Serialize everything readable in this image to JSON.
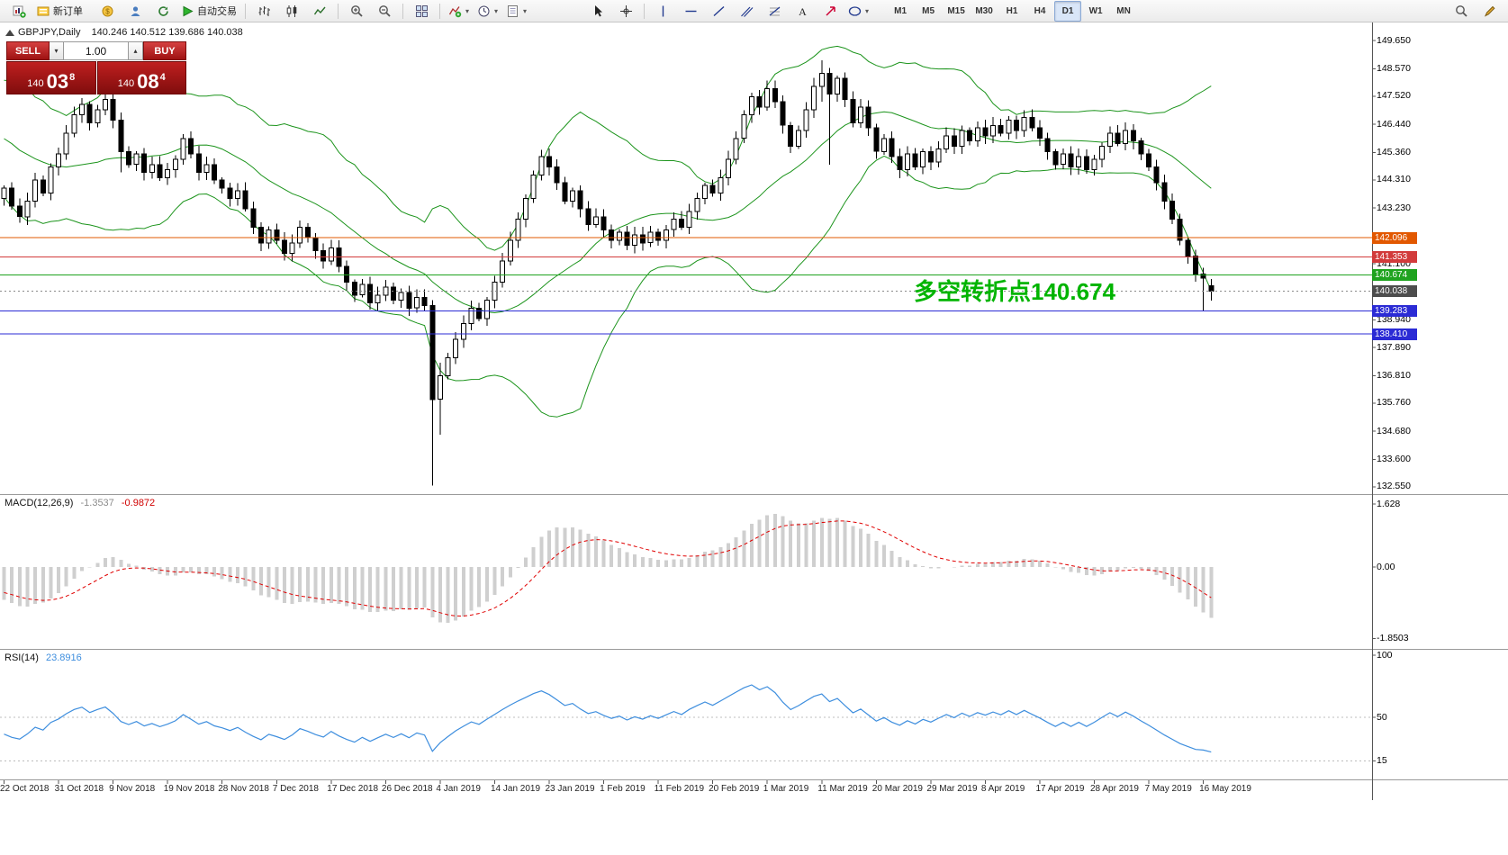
{
  "app": {
    "name": "MetaTrader"
  },
  "toolbar": {
    "items": [
      {
        "name": "new-chart-button",
        "icon": "new-chart"
      },
      {
        "name": "new-order-button",
        "icon": "new-order",
        "text": "新订单"
      },
      {
        "type": "space",
        "w": 6
      },
      {
        "name": "market-watch-button",
        "icon": "coin"
      },
      {
        "name": "navigator-button",
        "icon": "profile"
      },
      {
        "name": "refresh-button",
        "icon": "refresh"
      },
      {
        "name": "autotrading-button",
        "icon": "autotrade",
        "text": "自动交易"
      },
      {
        "type": "sep"
      },
      {
        "name": "bar-chart-button",
        "icon": "bar-chart"
      },
      {
        "name": "candlestick-chart-button",
        "icon": "candles"
      },
      {
        "name": "line-chart-button",
        "icon": "line-chart"
      },
      {
        "type": "sep"
      },
      {
        "name": "zoom-in-button",
        "icon": "zoom-in"
      },
      {
        "name": "zoom-out-button",
        "icon": "zoom-out"
      },
      {
        "type": "sep"
      },
      {
        "name": "tile-windows-button",
        "icon": "tile"
      },
      {
        "type": "sep"
      },
      {
        "name": "indicators-button",
        "icon": "indicators",
        "caret": true
      },
      {
        "name": "periods-button",
        "icon": "periods",
        "caret": true
      },
      {
        "name": "templates-button",
        "icon": "templates",
        "caret": true
      },
      {
        "type": "space",
        "w": 58
      },
      {
        "name": "cursor-button",
        "icon": "cursor"
      },
      {
        "name": "crosshair-button",
        "icon": "crosshair"
      },
      {
        "type": "sep"
      },
      {
        "name": "vertical-line-button",
        "icon": "vline"
      },
      {
        "name": "horizontal-line-button",
        "icon": "hline"
      },
      {
        "name": "trendline-button",
        "icon": "trendline"
      },
      {
        "name": "channel-button",
        "icon": "channel"
      },
      {
        "name": "fibonacci-button",
        "icon": "fibo"
      },
      {
        "name": "text-button",
        "icon": "text"
      },
      {
        "name": "arrows-button",
        "icon": "arrow-obj"
      },
      {
        "name": "shapes-button",
        "icon": "shapes",
        "caret": true
      },
      {
        "type": "space",
        "w": 14
      },
      {
        "name": "timeframe-m1-button",
        "text": "M1",
        "bold": true
      },
      {
        "name": "timeframe-m5-button",
        "text": "M5",
        "bold": true
      },
      {
        "name": "timeframe-m15-button",
        "text": "M15",
        "bold": true
      },
      {
        "name": "timeframe-m30-button",
        "text": "M30",
        "bold": true
      },
      {
        "name": "timeframe-h1-button",
        "text": "H1",
        "bold": true
      },
      {
        "name": "timeframe-h4-button",
        "text": "H4",
        "bold": true
      },
      {
        "name": "timeframe-d1-button",
        "text": "D1",
        "bold": true,
        "active": true
      },
      {
        "name": "timeframe-w1-button",
        "text": "W1",
        "bold": true
      },
      {
        "name": "timeframe-mn-button",
        "text": "MN",
        "bold": true
      },
      {
        "type": "flex"
      },
      {
        "name": "search-button",
        "icon": "search"
      },
      {
        "name": "chart-edit-button",
        "icon": "pencil"
      }
    ]
  },
  "chart": {
    "symbol_label": "GBPJPY,Daily",
    "ohlc_label": "140.246 140.512 139.686 140.038",
    "one_click": {
      "sell_label": "SELL",
      "buy_label": "BUY",
      "volume": "1.00",
      "price_prefix": "140",
      "sell_big": "03",
      "sell_sup": "8",
      "buy_big": "08",
      "buy_sup": "4"
    },
    "annotation": {
      "text": "多空转折点140.674",
      "color": "#00B400"
    },
    "price_axis_labels": [
      "149.650",
      "148.570",
      "147.520",
      "146.440",
      "145.360",
      "144.310",
      "143.230",
      "141.100",
      "138.940",
      "137.890",
      "136.810",
      "135.760",
      "134.680",
      "133.600",
      "132.550"
    ],
    "hlines": [
      {
        "price": 142.096,
        "label": "142.096",
        "color": "#E25800"
      },
      {
        "price": 141.353,
        "label": "141.353",
        "color": "#D23B3B"
      },
      {
        "price": 140.674,
        "label": "140.674",
        "color": "#1FA31F"
      },
      {
        "price": 139.283,
        "label": "139.283",
        "color": "#2B2BD5"
      },
      {
        "price": 138.41,
        "label": "138.410",
        "color": "#2B2BD5"
      }
    ],
    "current_price": {
      "price": 140.038,
      "label": "140.038",
      "color": "#4D4D4D"
    },
    "dates": [
      "22 Oct 2018",
      "31 Oct 2018",
      "9 Nov 2018",
      "19 Nov 2018",
      "28 Nov 2018",
      "7 Dec 2018",
      "17 Dec 2018",
      "26 Dec 2018",
      "4 Jan 2019",
      "14 Jan 2019",
      "23 Jan 2019",
      "1 Feb 2019",
      "11 Feb 2019",
      "20 Feb 2019",
      "1 Mar 2019",
      "11 Mar 2019",
      "20 Mar 2019",
      "29 Mar 2019",
      "8 Apr 2019",
      "17 Apr 2019",
      "28 Apr 2019",
      "7 May 2019",
      "16 May 2019"
    ],
    "chart_data": {
      "type": "candlestick",
      "symbol": "GBPJPY",
      "timeframe": "Daily",
      "ylim": [
        132.55,
        149.65
      ],
      "first_open": 143.6,
      "warmup_closes": [
        147.8,
        147.2,
        147.9,
        146.8,
        147.5,
        146.4,
        147.0,
        146.2,
        146.8,
        145.8,
        146.4,
        145.5,
        146.1,
        145.2,
        145.8,
        144.8,
        145.3,
        144.4,
        144.8,
        143.9
      ],
      "closes": [
        144.0,
        143.3,
        142.9,
        143.5,
        144.3,
        143.8,
        144.8,
        145.3,
        146.1,
        146.8,
        147.2,
        146.5,
        147.0,
        147.4,
        146.6,
        145.4,
        144.9,
        145.3,
        144.6,
        144.9,
        144.4,
        144.7,
        145.1,
        145.9,
        145.3,
        144.6,
        144.9,
        144.3,
        144.0,
        143.6,
        143.9,
        143.2,
        142.5,
        141.9,
        142.4,
        142.0,
        141.5,
        141.9,
        142.5,
        142.1,
        141.6,
        141.2,
        141.7,
        141.0,
        140.4,
        139.9,
        140.3,
        139.6,
        139.9,
        140.2,
        139.7,
        140.0,
        139.4,
        139.8,
        139.5,
        135.9,
        136.8,
        137.5,
        138.2,
        138.8,
        139.4,
        139.0,
        139.7,
        140.4,
        141.2,
        142.0,
        142.8,
        143.6,
        144.5,
        145.2,
        144.8,
        144.2,
        143.5,
        143.9,
        143.2,
        142.6,
        142.9,
        142.4,
        142.0,
        142.3,
        141.8,
        142.2,
        141.9,
        142.3,
        142.0,
        142.4,
        142.8,
        142.5,
        143.1,
        143.6,
        144.1,
        143.8,
        144.4,
        145.1,
        145.9,
        146.8,
        147.5,
        147.1,
        147.8,
        147.3,
        146.4,
        145.6,
        146.2,
        147.0,
        147.9,
        148.4,
        147.6,
        148.2,
        147.4,
        146.5,
        147.1,
        146.3,
        145.4,
        145.9,
        145.2,
        144.7,
        145.3,
        144.8,
        145.4,
        145.0,
        145.5,
        146.0,
        145.6,
        146.2,
        145.8,
        146.3,
        146.0,
        146.4,
        146.1,
        146.6,
        146.2,
        146.7,
        146.3,
        145.9,
        145.4,
        144.9,
        145.3,
        144.8,
        145.2,
        144.7,
        145.1,
        145.6,
        146.1,
        145.7,
        146.2,
        145.8,
        145.3,
        144.8,
        144.2,
        143.5,
        142.8,
        142.0,
        141.4,
        140.7,
        140.55,
        140.038
      ],
      "overrides": {
        "15": {
          "o": 146.6,
          "h": 146.9,
          "l": 144.6,
          "c": 145.4
        },
        "55": {
          "o": 139.5,
          "h": 139.7,
          "l": 132.6,
          "c": 135.9
        },
        "56": {
          "o": 135.9,
          "h": 137.3,
          "l": 134.55,
          "c": 136.8
        },
        "105": {
          "o": 147.9,
          "h": 148.9,
          "l": 147.3,
          "c": 148.4
        },
        "106": {
          "o": 148.4,
          "h": 148.6,
          "l": 144.9,
          "c": 147.6
        },
        "154": {
          "o": 140.7,
          "h": 140.95,
          "l": 139.3,
          "c": 140.55
        },
        "155": {
          "o": 140.246,
          "h": 140.512,
          "l": 139.686,
          "c": 140.038
        }
      },
      "bollinger": {
        "period": 20,
        "deviation": 2,
        "color": "#1C941C"
      },
      "bull_color": "#FFFFFF",
      "bear_color": "#000000"
    }
  },
  "macd": {
    "name": "MACD(12,26,9)",
    "value_main": "-1.3537",
    "value_signal": "-0.9872",
    "value_main_color": "#8C8C8C",
    "value_signal_color": "#D00000",
    "axis": [
      {
        "v": 1.628,
        "label": "1.628"
      },
      {
        "v": 0,
        "label": "0.00"
      },
      {
        "v": -1.8503,
        "label": "-1.8503"
      }
    ],
    "histogram_color": "#CFCFCF",
    "signal_color": "#E00000",
    "params": {
      "fast": 12,
      "slow": 26,
      "signal": 9
    }
  },
  "rsi": {
    "name": "RSI(14)",
    "value": "23.8916",
    "value_color": "#3E8EDE",
    "axis": [
      {
        "v": 100,
        "label": "100"
      },
      {
        "v": 50,
        "label": "50"
      },
      {
        "v": 15,
        "label": "15"
      }
    ],
    "levels": [
      50,
      15
    ],
    "line_color": "#3E8EDE",
    "period": 14
  }
}
